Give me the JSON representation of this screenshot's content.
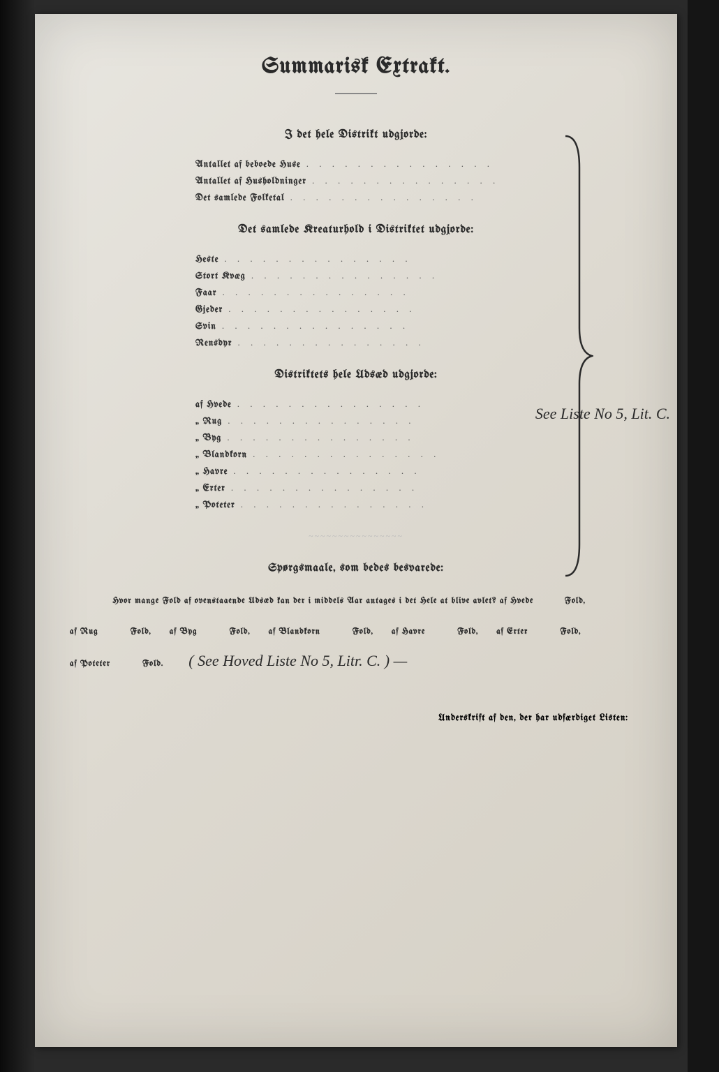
{
  "title": "Summarisk Extrakt.",
  "section1": {
    "heading": "I det hele Distrikt udgjorde:",
    "items": [
      "Antallet af beboede Huse",
      "Antallet af Husholdninger",
      "Det samlede Folketal"
    ]
  },
  "section2": {
    "heading": "Det samlede Kreaturhold i Distriktet udgjorde:",
    "items": [
      "Heste",
      "Stort Kvæg",
      "Faar",
      "Gjeder",
      "Svin",
      "Rensdyr"
    ]
  },
  "section3": {
    "heading": "Distriktets hele Udsæd udgjorde:",
    "items": [
      "af Hvede",
      "„ Rug",
      "„ Byg",
      "„ Blandkorn",
      "„ Havre",
      "„ Erter",
      "„ Poteter"
    ]
  },
  "margin_note": "See Liste No 5, Lit. C.",
  "questions": {
    "heading": "Spørgsmaale, som bedes besvarede:",
    "intro": "Hvor mange Fold af ovenstaaende Udsæd kan der i middels Aar antages i det Hele at blive avlet?",
    "crops": [
      "af Hvede",
      "af Rug",
      "af Byg",
      "af Blandkorn",
      "af Havre",
      "af Erter",
      "af Poteter"
    ],
    "fold_label": "Fold,",
    "fold_label_last": "Fold.",
    "handwritten_answer": "( See Hoved Liste No 5, Litr. C. ) —"
  },
  "signature_label": "Underskrift af den, der har udfærdiget Listen:",
  "colors": {
    "paper": "#e0ddd4",
    "ink": "#2a2a2a",
    "faded_ink": "#555555"
  },
  "brace": {
    "stroke": "#2a2a2a",
    "width": 2
  }
}
